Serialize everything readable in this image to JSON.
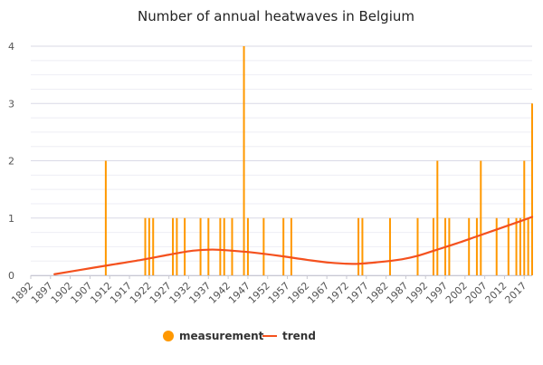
{
  "chart_data": {
    "type": "bar",
    "title": "Number of annual heatwaves in Belgium",
    "xlabel": "",
    "ylabel": "",
    "xlim": [
      1892,
      2019
    ],
    "ylim": [
      0,
      4
    ],
    "x_ticks": [
      1892,
      1897,
      1902,
      1907,
      1912,
      1917,
      1922,
      1927,
      1932,
      1937,
      1942,
      1947,
      1952,
      1957,
      1962,
      1967,
      1972,
      1977,
      1982,
      1987,
      1992,
      1997,
      2002,
      2007,
      2012,
      2017
    ],
    "y_ticks": [
      0,
      1,
      2,
      3,
      4
    ],
    "grid": "horizontal",
    "legend": "bottom-center",
    "series": [
      {
        "name": "measurement",
        "type": "bar",
        "color": "#FF9800",
        "points": [
          {
            "x": 1911,
            "y": 2
          },
          {
            "x": 1921,
            "y": 1
          },
          {
            "x": 1922,
            "y": 1
          },
          {
            "x": 1923,
            "y": 1
          },
          {
            "x": 1928,
            "y": 1
          },
          {
            "x": 1929,
            "y": 1
          },
          {
            "x": 1931,
            "y": 1
          },
          {
            "x": 1935,
            "y": 1
          },
          {
            "x": 1937,
            "y": 1
          },
          {
            "x": 1940,
            "y": 1
          },
          {
            "x": 1941,
            "y": 1
          },
          {
            "x": 1943,
            "y": 1
          },
          {
            "x": 1946,
            "y": 4
          },
          {
            "x": 1947,
            "y": 1
          },
          {
            "x": 1951,
            "y": 1
          },
          {
            "x": 1956,
            "y": 1
          },
          {
            "x": 1958,
            "y": 1
          },
          {
            "x": 1975,
            "y": 1
          },
          {
            "x": 1976,
            "y": 1
          },
          {
            "x": 1983,
            "y": 1
          },
          {
            "x": 1990,
            "y": 1
          },
          {
            "x": 1994,
            "y": 1
          },
          {
            "x": 1995,
            "y": 2
          },
          {
            "x": 1997,
            "y": 1
          },
          {
            "x": 1998,
            "y": 1
          },
          {
            "x": 2003,
            "y": 1
          },
          {
            "x": 2005,
            "y": 1
          },
          {
            "x": 2006,
            "y": 2
          },
          {
            "x": 2010,
            "y": 1
          },
          {
            "x": 2013,
            "y": 1
          },
          {
            "x": 2015,
            "y": 1
          },
          {
            "x": 2016,
            "y": 1
          },
          {
            "x": 2017,
            "y": 2
          },
          {
            "x": 2018,
            "y": 1
          },
          {
            "x": 2019,
            "y": 3
          }
        ]
      },
      {
        "name": "trend",
        "type": "line",
        "color": "#F4511E",
        "points": [
          {
            "x": 1898,
            "y": 0.02
          },
          {
            "x": 1905,
            "y": 0.1
          },
          {
            "x": 1912,
            "y": 0.18
          },
          {
            "x": 1920,
            "y": 0.27
          },
          {
            "x": 1927,
            "y": 0.36
          },
          {
            "x": 1933,
            "y": 0.43
          },
          {
            "x": 1938,
            "y": 0.45
          },
          {
            "x": 1943,
            "y": 0.43
          },
          {
            "x": 1948,
            "y": 0.4
          },
          {
            "x": 1955,
            "y": 0.34
          },
          {
            "x": 1962,
            "y": 0.27
          },
          {
            "x": 1968,
            "y": 0.22
          },
          {
            "x": 1974,
            "y": 0.2
          },
          {
            "x": 1980,
            "y": 0.23
          },
          {
            "x": 1986,
            "y": 0.28
          },
          {
            "x": 1990,
            "y": 0.34
          },
          {
            "x": 1995,
            "y": 0.45
          },
          {
            "x": 2000,
            "y": 0.56
          },
          {
            "x": 2005,
            "y": 0.68
          },
          {
            "x": 2010,
            "y": 0.8
          },
          {
            "x": 2015,
            "y": 0.92
          },
          {
            "x": 2019,
            "y": 1.02
          }
        ]
      }
    ]
  }
}
